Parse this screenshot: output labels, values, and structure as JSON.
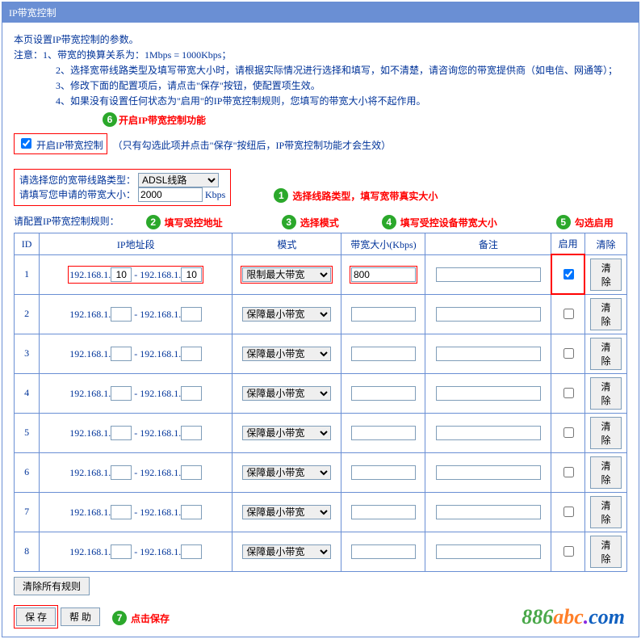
{
  "title": "IP带宽控制",
  "intro": {
    "line1": "本页设置IP带宽控制的参数。",
    "noticeLabel": "注意：",
    "n1": "1、带宽的换算关系为：1Mbps = 1000Kbps；",
    "n2": "2、选择宽带线路类型及填写带宽大小时，请根据实际情况进行选择和填写，如不清楚，请咨询您的带宽提供商（如电信、网通等）；",
    "n3": "3、修改下面的配置项后，请点击\"保存\"按钮，使配置项生效。",
    "n4": "4、如果没有设置任何状态为\"启用\"的IP带宽控制规则，您填写的带宽大小将不起作用。"
  },
  "enable": {
    "checkboxLabel": "开启IP带宽控制",
    "note": "（只有勾选此项并点击\"保存\"按纽后，IP带宽控制功能才会生效）",
    "checked": true
  },
  "annotations": {
    "a6": "开启IP带宽控制功能",
    "a1": "选择线路类型，填写宽带真实大小",
    "a2": "填写受控地址",
    "a3": "选择模式",
    "a4": "填写受控设备带宽大小",
    "a5": "勾选启用",
    "a7": "点击保存"
  },
  "lineType": {
    "label1": "请选择您的宽带线路类型：",
    "select": "ADSL线路",
    "label2": "请填写您申请的带宽大小：",
    "value": "2000",
    "unit": "Kbps"
  },
  "rulesCaption": "请配置IP带宽控制规则：",
  "table": {
    "headers": {
      "id": "ID",
      "ip": "IP地址段",
      "mode": "模式",
      "bw": "带宽大小(Kbps)",
      "note": "备注",
      "enable": "启用",
      "clear": "清除"
    },
    "ipPrefix": "192.168.1.",
    "modeOptions": {
      "limit": "限制最大带宽",
      "guarantee": "保障最小带宽"
    },
    "clearLabel": "清除",
    "rows": [
      {
        "id": "1",
        "ipStart": "10",
        "ipEnd": "10",
        "mode": "limit",
        "bw": "800",
        "note": "",
        "enable": true,
        "hl": true
      },
      {
        "id": "2",
        "ipStart": "",
        "ipEnd": "",
        "mode": "guarantee",
        "bw": "",
        "note": "",
        "enable": false
      },
      {
        "id": "3",
        "ipStart": "",
        "ipEnd": "",
        "mode": "guarantee",
        "bw": "",
        "note": "",
        "enable": false
      },
      {
        "id": "4",
        "ipStart": "",
        "ipEnd": "",
        "mode": "guarantee",
        "bw": "",
        "note": "",
        "enable": false
      },
      {
        "id": "5",
        "ipStart": "",
        "ipEnd": "",
        "mode": "guarantee",
        "bw": "",
        "note": "",
        "enable": false
      },
      {
        "id": "6",
        "ipStart": "",
        "ipEnd": "",
        "mode": "guarantee",
        "bw": "",
        "note": "",
        "enable": false
      },
      {
        "id": "7",
        "ipStart": "",
        "ipEnd": "",
        "mode": "guarantee",
        "bw": "",
        "note": "",
        "enable": false
      },
      {
        "id": "8",
        "ipStart": "",
        "ipEnd": "",
        "mode": "guarantee",
        "bw": "",
        "note": "",
        "enable": false
      }
    ]
  },
  "clearAll": "清除所有规则",
  "save": "保 存",
  "help": "帮 助",
  "watermark": {
    "p1": "886",
    "p2": "abc",
    "dot": ".",
    "p3": "com"
  },
  "colors": {
    "frame": "#6a8fd4",
    "text": "#003399",
    "highlight": "#ff0000",
    "marker": "#2ba82b"
  }
}
